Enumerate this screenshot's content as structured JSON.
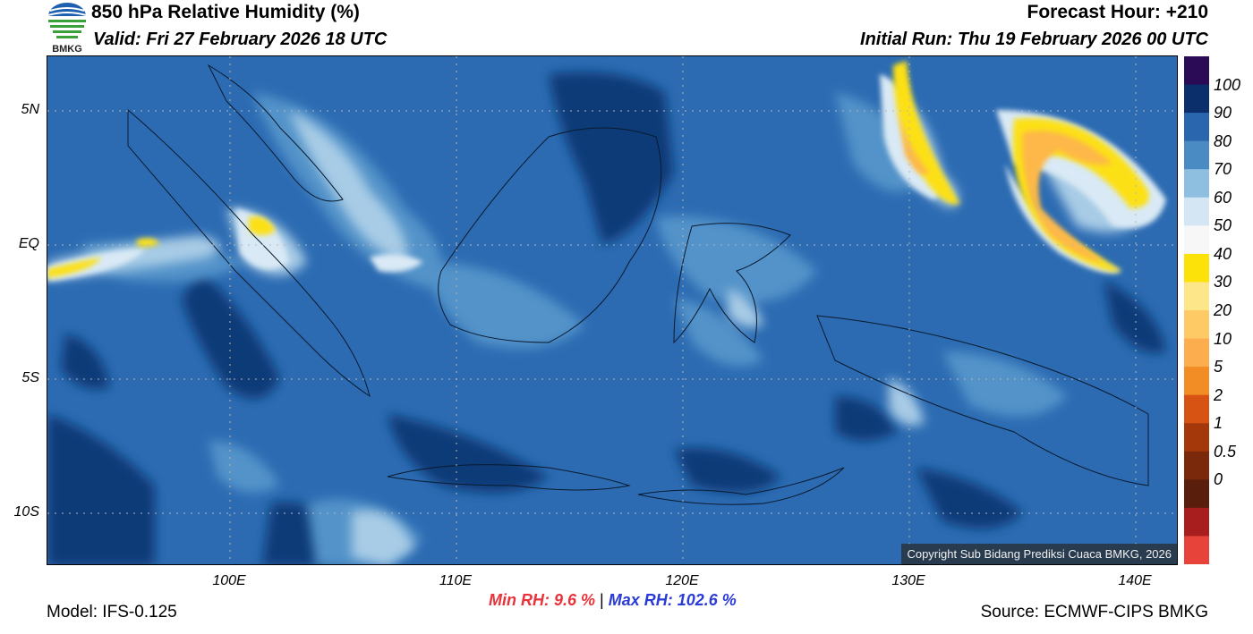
{
  "header": {
    "logo_text": "BMKG",
    "title": "850 hPa Relative Humidity (%)",
    "valid": "Valid: Fri 27 February 2026 18 UTC",
    "forecast_hour": "Forecast Hour: +210",
    "initial_run": "Initial Run: Thu 19 February 2026 00 UTC"
  },
  "map": {
    "lat_labels": [
      "5N",
      "EQ",
      "5S",
      "10S"
    ],
    "lon_labels": [
      "100E",
      "110E",
      "120E",
      "130E",
      "140E"
    ],
    "copyright": "Copyright Sub Bidang Prediksi Cuaca BMKG, 2026",
    "colors": {
      "background_moist": "#2c6bb2",
      "very_moist": "#0d3b78",
      "medium": "#5293c9",
      "light": "#a8cce6",
      "pale": "#d9e9f5",
      "dry_yellow": "#fce012",
      "dry_orange": "#fdb84a"
    }
  },
  "colorbar": {
    "labels": [
      "100",
      "90",
      "80",
      "70",
      "60",
      "50",
      "40",
      "30",
      "20",
      "10",
      "5",
      "2",
      "1",
      "0.5",
      "0"
    ],
    "colors": [
      "#2b0a56",
      "#0a2f6a",
      "#2a66ad",
      "#4a8bc4",
      "#8fbfe0",
      "#d4e6f3",
      "#f7f7f7",
      "#fce208",
      "#fde58a",
      "#fdca65",
      "#fcae4f",
      "#f28c24",
      "#d65313",
      "#a5380b",
      "#7a2a0a",
      "#5a1f0c",
      "#a81d1d",
      "#e8433a"
    ]
  },
  "stats": {
    "min_label": "Min RH:   9.6 %",
    "separator": "|",
    "max_label": "Max RH: 102.6 %"
  },
  "footer": {
    "model": "Model: IFS-0.125",
    "source": "Source: ECMWF-CIPS BMKG"
  }
}
